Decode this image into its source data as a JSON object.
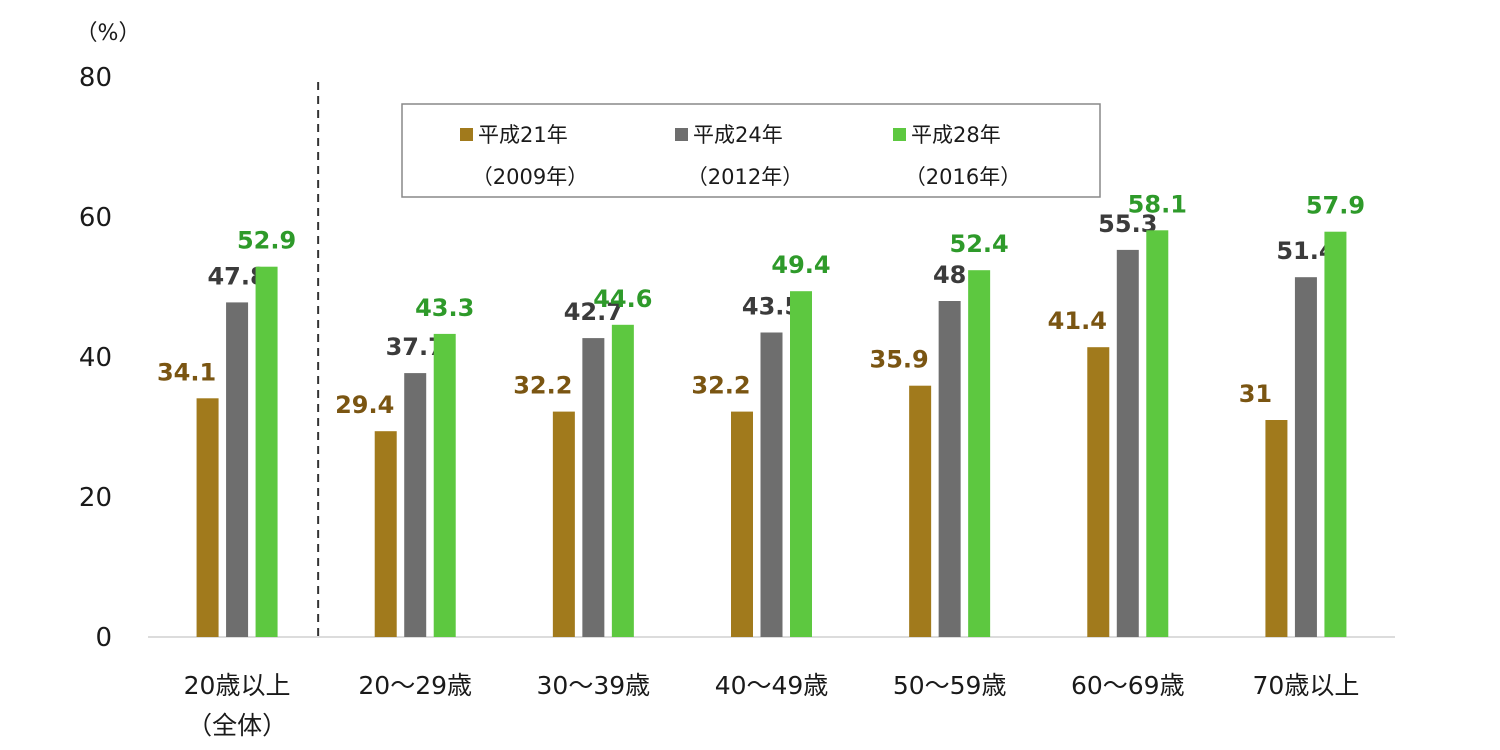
{
  "chart_data": {
    "type": "bar",
    "unit_label": "（%）",
    "categories": [
      [
        "20歳以上",
        "（全体）"
      ],
      [
        "20～29歳"
      ],
      [
        "30～39歳"
      ],
      [
        "40～49歳"
      ],
      [
        "50～59歳"
      ],
      [
        "60～69歳"
      ],
      [
        "70歳以上"
      ]
    ],
    "series": [
      {
        "name": "平成21年",
        "name_sub": "（2009年）",
        "color": "#A17A1C",
        "label_color": "#7A5512",
        "values": [
          34.1,
          29.4,
          32.2,
          32.2,
          35.9,
          41.4,
          31
        ]
      },
      {
        "name": "平成24年",
        "name_sub": "（2012年）",
        "color": "#6E6E6E",
        "label_color": "#3B3B3B",
        "values": [
          47.8,
          37.7,
          42.7,
          43.5,
          48,
          55.3,
          51.4
        ]
      },
      {
        "name": "平成28年",
        "name_sub": "（2016年）",
        "color": "#5DC840",
        "label_color": "#2E9A2A",
        "values": [
          52.9,
          43.3,
          44.6,
          49.4,
          52.4,
          58.1,
          57.9
        ]
      }
    ],
    "ylim": [
      0,
      80
    ],
    "yticks": [
      0,
      20,
      40,
      60,
      80
    ],
    "xlabel": "",
    "ylabel": "",
    "grid": false,
    "separator_after_category": 0,
    "legend_position": "top-center"
  }
}
